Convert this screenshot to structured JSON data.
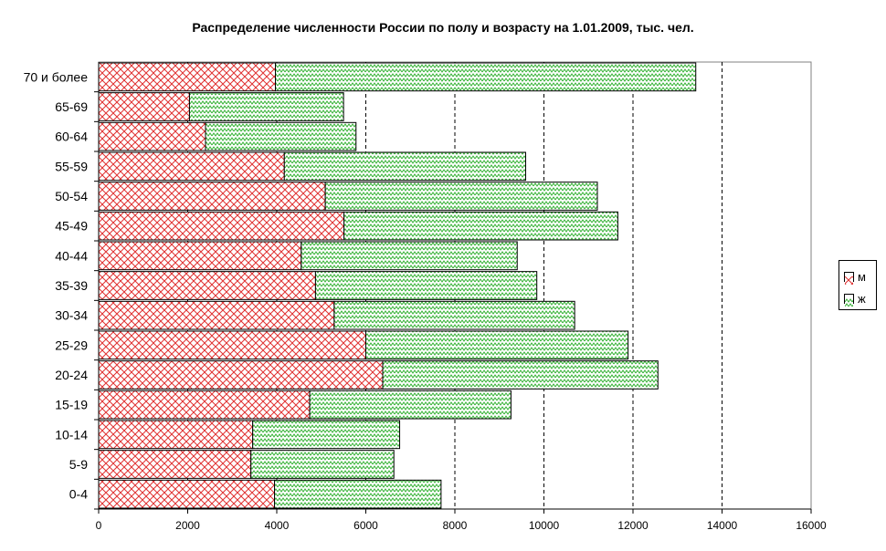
{
  "chart_data": {
    "type": "bar",
    "orientation": "horizontal",
    "stacked": true,
    "title": "Распределение численности России по полу и возрасту на 1.01.2009, тыс. чел.",
    "categories": [
      "0-4",
      "5-9",
      "10-14",
      "15-19",
      "20-24",
      "25-29",
      "30-34",
      "35-39",
      "40-44",
      "45-49",
      "50-54",
      "55-59",
      "60-64",
      "65-69",
      "70 и более"
    ],
    "series": [
      {
        "name": "м",
        "color": "#e03030",
        "pattern": "crosshatch",
        "values": [
          3950,
          3420,
          3460,
          4740,
          6380,
          6000,
          5290,
          4870,
          4550,
          5510,
          5090,
          4170,
          2400,
          2040,
          3970
        ]
      },
      {
        "name": "ж",
        "color": "#30b030",
        "pattern": "zigzag",
        "values": [
          3740,
          3210,
          3300,
          4520,
          6180,
          5890,
          5400,
          4970,
          4850,
          6150,
          6110,
          5420,
          3380,
          3460,
          9440
        ]
      }
    ],
    "xlim": [
      0,
      16000
    ],
    "xticks": [
      0,
      2000,
      4000,
      6000,
      8000,
      10000,
      12000,
      14000,
      16000
    ],
    "grid": "vertical-dashed",
    "legend_position": "right"
  }
}
